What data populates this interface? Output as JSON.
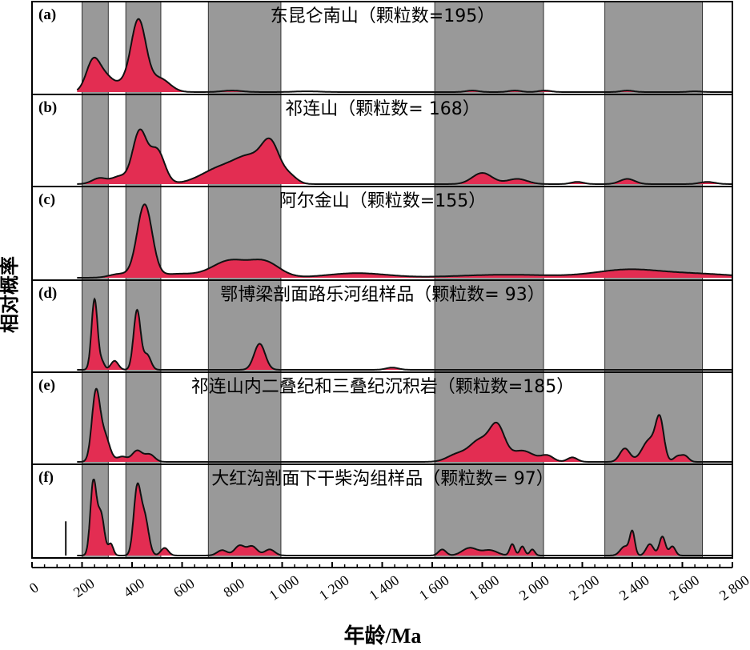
{
  "chart_data": {
    "type": "area",
    "ylabel": "相对概率",
    "xlabel": "年龄/Ma",
    "xlim": [
      0,
      2800
    ],
    "x_ticks": [
      0,
      200,
      400,
      600,
      800,
      1000,
      1200,
      1400,
      1600,
      1800,
      2000,
      2200,
      2400,
      2600,
      2800
    ],
    "x_tick_labels": [
      "0",
      "200",
      "400",
      "600",
      "800",
      "1 000",
      "1 200",
      "1 400",
      "1 600",
      "1 800",
      "2 000",
      "2 200",
      "2 400",
      "2 600",
      "2 800"
    ],
    "shaded_intervals": [
      [
        200,
        305
      ],
      [
        375,
        515
      ],
      [
        705,
        995
      ],
      [
        1610,
        2045
      ],
      [
        2290,
        2680
      ]
    ],
    "fill_color": "#e32d52",
    "shade_color": "#999999",
    "panels": [
      {
        "letter": "(a)",
        "title": "东昆仑南山（颗粒数=195）",
        "peaks": [
          [
            245,
            28,
            0.42
          ],
          [
            300,
            30,
            0.18
          ],
          [
            360,
            25,
            0.08
          ],
          [
            425,
            30,
            0.95
          ],
          [
            510,
            40,
            0.18
          ],
          [
            800,
            40,
            0.02
          ],
          [
            1100,
            50,
            0.01
          ],
          [
            1760,
            25,
            0.02
          ],
          [
            1930,
            25,
            0.02
          ],
          [
            2050,
            25,
            0.02
          ],
          [
            2380,
            25,
            0.02
          ],
          [
            2650,
            25,
            0.01
          ]
        ]
      },
      {
        "letter": "(b)",
        "title": "祁连山（颗粒数= 168）",
        "peaks": [
          [
            270,
            30,
            0.08
          ],
          [
            350,
            30,
            0.1
          ],
          [
            430,
            28,
            0.7
          ],
          [
            500,
            30,
            0.45
          ],
          [
            760,
            80,
            0.22
          ],
          [
            880,
            60,
            0.3
          ],
          [
            955,
            35,
            0.45
          ],
          [
            1030,
            30,
            0.1
          ],
          [
            1800,
            40,
            0.15
          ],
          [
            1940,
            40,
            0.07
          ],
          [
            2180,
            25,
            0.03
          ],
          [
            2380,
            30,
            0.07
          ],
          [
            2700,
            30,
            0.03
          ]
        ]
      },
      {
        "letter": "(c)",
        "title": "阿尔金山（颗粒数=155）",
        "peaks": [
          [
            350,
            40,
            0.05
          ],
          [
            450,
            30,
            0.95
          ],
          [
            580,
            80,
            0.05
          ],
          [
            790,
            70,
            0.22
          ],
          [
            930,
            60,
            0.2
          ],
          [
            1300,
            120,
            0.06
          ],
          [
            1900,
            200,
            0.04
          ],
          [
            2380,
            130,
            0.1
          ],
          [
            2660,
            150,
            0.05
          ]
        ]
      },
      {
        "letter": "(d)",
        "title": "鄂博梁剖面路乐河组样品（颗粒数= 93）",
        "peaks": [
          [
            250,
            12,
            0.95
          ],
          [
            280,
            10,
            0.1
          ],
          [
            330,
            15,
            0.12
          ],
          [
            420,
            14,
            0.8
          ],
          [
            460,
            15,
            0.2
          ],
          [
            910,
            22,
            0.35
          ],
          [
            1440,
            25,
            0.03
          ]
        ]
      },
      {
        "letter": "(e)",
        "title": "祁连山内二叠纪和三叠纪沉积岩（颗粒数=185）",
        "peaks": [
          [
            255,
            16,
            0.9
          ],
          [
            290,
            20,
            0.35
          ],
          [
            360,
            20,
            0.07
          ],
          [
            420,
            20,
            0.15
          ],
          [
            470,
            20,
            0.1
          ],
          [
            1700,
            40,
            0.1
          ],
          [
            1790,
            40,
            0.28
          ],
          [
            1860,
            30,
            0.45
          ],
          [
            1960,
            45,
            0.15
          ],
          [
            2060,
            25,
            0.08
          ],
          [
            2160,
            20,
            0.06
          ],
          [
            2370,
            20,
            0.18
          ],
          [
            2470,
            30,
            0.3
          ],
          [
            2510,
            16,
            0.5
          ],
          [
            2580,
            15,
            0.07
          ],
          [
            2610,
            15,
            0.08
          ]
        ]
      },
      {
        "letter": "(f)",
        "title": "大红沟剖面下干柴沟组样品（颗粒数= 97）",
        "peaks": [
          [
            245,
            12,
            0.95
          ],
          [
            275,
            14,
            0.55
          ],
          [
            315,
            10,
            0.15
          ],
          [
            420,
            14,
            0.85
          ],
          [
            450,
            16,
            0.5
          ],
          [
            530,
            15,
            0.1
          ],
          [
            760,
            20,
            0.07
          ],
          [
            830,
            20,
            0.13
          ],
          [
            880,
            20,
            0.12
          ],
          [
            950,
            20,
            0.08
          ],
          [
            1640,
            15,
            0.08
          ],
          [
            1750,
            30,
            0.1
          ],
          [
            1830,
            30,
            0.07
          ],
          [
            1920,
            10,
            0.15
          ],
          [
            1960,
            10,
            0.12
          ],
          [
            2000,
            10,
            0.08
          ],
          [
            2370,
            18,
            0.12
          ],
          [
            2400,
            10,
            0.3
          ],
          [
            2470,
            15,
            0.15
          ],
          [
            2520,
            12,
            0.25
          ],
          [
            2560,
            12,
            0.12
          ]
        ],
        "spike": 135
      }
    ]
  }
}
